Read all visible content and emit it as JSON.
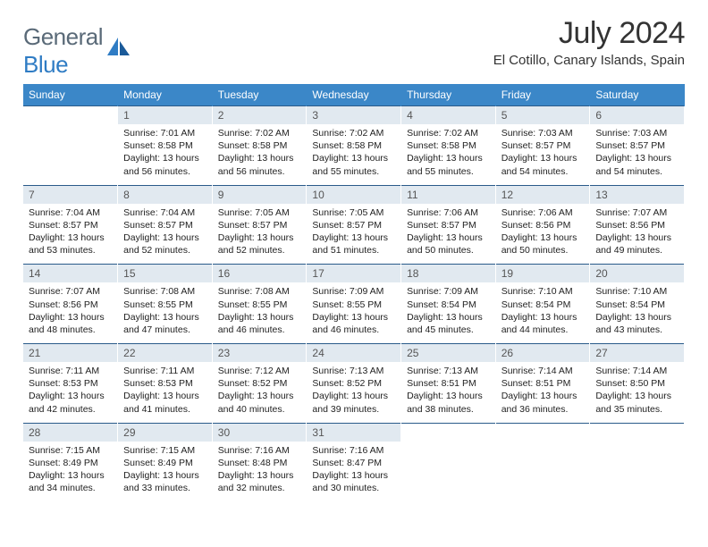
{
  "brand": {
    "part1": "General",
    "part2": "Blue"
  },
  "title": "July 2024",
  "location": "El Cotillo, Canary Islands, Spain",
  "colors": {
    "header_bg": "#3b87c8",
    "header_text": "#ffffff",
    "daynum_bg": "#e1e9f0",
    "daynum_border": "#2a5b8a",
    "text": "#222222",
    "brand_gray": "#5a6a78",
    "brand_blue": "#2f7cc4"
  },
  "weekdays": [
    "Sunday",
    "Monday",
    "Tuesday",
    "Wednesday",
    "Thursday",
    "Friday",
    "Saturday"
  ],
  "weeks": [
    [
      null,
      {
        "n": "1",
        "sr": "7:01 AM",
        "ss": "8:58 PM",
        "dl": "13 hours and 56 minutes."
      },
      {
        "n": "2",
        "sr": "7:02 AM",
        "ss": "8:58 PM",
        "dl": "13 hours and 56 minutes."
      },
      {
        "n": "3",
        "sr": "7:02 AM",
        "ss": "8:58 PM",
        "dl": "13 hours and 55 minutes."
      },
      {
        "n": "4",
        "sr": "7:02 AM",
        "ss": "8:58 PM",
        "dl": "13 hours and 55 minutes."
      },
      {
        "n": "5",
        "sr": "7:03 AM",
        "ss": "8:57 PM",
        "dl": "13 hours and 54 minutes."
      },
      {
        "n": "6",
        "sr": "7:03 AM",
        "ss": "8:57 PM",
        "dl": "13 hours and 54 minutes."
      }
    ],
    [
      {
        "n": "7",
        "sr": "7:04 AM",
        "ss": "8:57 PM",
        "dl": "13 hours and 53 minutes."
      },
      {
        "n": "8",
        "sr": "7:04 AM",
        "ss": "8:57 PM",
        "dl": "13 hours and 52 minutes."
      },
      {
        "n": "9",
        "sr": "7:05 AM",
        "ss": "8:57 PM",
        "dl": "13 hours and 52 minutes."
      },
      {
        "n": "10",
        "sr": "7:05 AM",
        "ss": "8:57 PM",
        "dl": "13 hours and 51 minutes."
      },
      {
        "n": "11",
        "sr": "7:06 AM",
        "ss": "8:57 PM",
        "dl": "13 hours and 50 minutes."
      },
      {
        "n": "12",
        "sr": "7:06 AM",
        "ss": "8:56 PM",
        "dl": "13 hours and 50 minutes."
      },
      {
        "n": "13",
        "sr": "7:07 AM",
        "ss": "8:56 PM",
        "dl": "13 hours and 49 minutes."
      }
    ],
    [
      {
        "n": "14",
        "sr": "7:07 AM",
        "ss": "8:56 PM",
        "dl": "13 hours and 48 minutes."
      },
      {
        "n": "15",
        "sr": "7:08 AM",
        "ss": "8:55 PM",
        "dl": "13 hours and 47 minutes."
      },
      {
        "n": "16",
        "sr": "7:08 AM",
        "ss": "8:55 PM",
        "dl": "13 hours and 46 minutes."
      },
      {
        "n": "17",
        "sr": "7:09 AM",
        "ss": "8:55 PM",
        "dl": "13 hours and 46 minutes."
      },
      {
        "n": "18",
        "sr": "7:09 AM",
        "ss": "8:54 PM",
        "dl": "13 hours and 45 minutes."
      },
      {
        "n": "19",
        "sr": "7:10 AM",
        "ss": "8:54 PM",
        "dl": "13 hours and 44 minutes."
      },
      {
        "n": "20",
        "sr": "7:10 AM",
        "ss": "8:54 PM",
        "dl": "13 hours and 43 minutes."
      }
    ],
    [
      {
        "n": "21",
        "sr": "7:11 AM",
        "ss": "8:53 PM",
        "dl": "13 hours and 42 minutes."
      },
      {
        "n": "22",
        "sr": "7:11 AM",
        "ss": "8:53 PM",
        "dl": "13 hours and 41 minutes."
      },
      {
        "n": "23",
        "sr": "7:12 AM",
        "ss": "8:52 PM",
        "dl": "13 hours and 40 minutes."
      },
      {
        "n": "24",
        "sr": "7:13 AM",
        "ss": "8:52 PM",
        "dl": "13 hours and 39 minutes."
      },
      {
        "n": "25",
        "sr": "7:13 AM",
        "ss": "8:51 PM",
        "dl": "13 hours and 38 minutes."
      },
      {
        "n": "26",
        "sr": "7:14 AM",
        "ss": "8:51 PM",
        "dl": "13 hours and 36 minutes."
      },
      {
        "n": "27",
        "sr": "7:14 AM",
        "ss": "8:50 PM",
        "dl": "13 hours and 35 minutes."
      }
    ],
    [
      {
        "n": "28",
        "sr": "7:15 AM",
        "ss": "8:49 PM",
        "dl": "13 hours and 34 minutes."
      },
      {
        "n": "29",
        "sr": "7:15 AM",
        "ss": "8:49 PM",
        "dl": "13 hours and 33 minutes."
      },
      {
        "n": "30",
        "sr": "7:16 AM",
        "ss": "8:48 PM",
        "dl": "13 hours and 32 minutes."
      },
      {
        "n": "31",
        "sr": "7:16 AM",
        "ss": "8:47 PM",
        "dl": "13 hours and 30 minutes."
      },
      null,
      null,
      null
    ]
  ],
  "labels": {
    "sunrise": "Sunrise:",
    "sunset": "Sunset:",
    "daylight": "Daylight:"
  }
}
